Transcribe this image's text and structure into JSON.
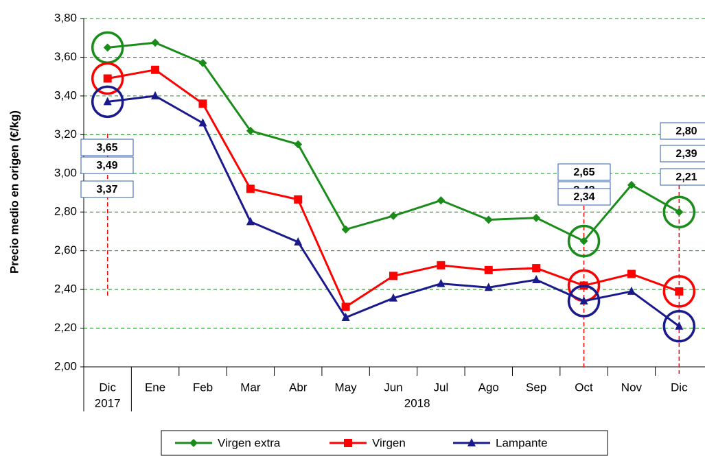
{
  "chart_data": {
    "type": "line",
    "y_label": "Precio medio en origen (€/kg)",
    "categories": [
      "Dic",
      "Ene",
      "Feb",
      "Mar",
      "Abr",
      "May",
      "Jun",
      "Jul",
      "Ago",
      "Sep",
      "Oct",
      "Nov",
      "Dic"
    ],
    "groups": [
      "2017",
      "2018"
    ],
    "ylim": [
      2.0,
      3.8
    ],
    "yticks": [
      {
        "value": 2.0,
        "label": "2,00"
      },
      {
        "value": 2.2,
        "label": "2,20"
      },
      {
        "value": 2.4,
        "label": "2,40"
      },
      {
        "value": 2.6,
        "label": "2,60"
      },
      {
        "value": 2.8,
        "label": "2,80"
      },
      {
        "value": 3.0,
        "label": "3,00"
      },
      {
        "value": 3.2,
        "label": "3,20"
      },
      {
        "value": 3.4,
        "label": "3,40"
      },
      {
        "value": 3.6,
        "label": "3,60"
      },
      {
        "value": 3.8,
        "label": "3,80"
      }
    ],
    "grid": true,
    "series": [
      {
        "name": "Virgen extra",
        "color": "#1a8c1a",
        "marker": "diamond",
        "values": [
          3.65,
          3.675,
          3.57,
          3.22,
          3.15,
          2.71,
          2.78,
          2.86,
          2.76,
          2.77,
          2.65,
          2.94,
          2.8
        ],
        "value_labels": [
          "3,65",
          null,
          null,
          null,
          null,
          null,
          null,
          null,
          null,
          null,
          "2,65",
          null,
          "2,80"
        ]
      },
      {
        "name": "Virgen",
        "color": "#ff0000",
        "marker": "square",
        "values": [
          3.49,
          3.535,
          3.36,
          2.92,
          2.865,
          2.31,
          2.47,
          2.525,
          2.5,
          2.51,
          2.42,
          2.48,
          2.39
        ],
        "value_labels": [
          "3,49",
          null,
          null,
          null,
          null,
          null,
          null,
          null,
          null,
          null,
          "2,42",
          null,
          "2,39"
        ]
      },
      {
        "name": "Lampante",
        "color": "#1a1a8c",
        "marker": "triangle",
        "values": [
          3.37,
          3.4,
          3.26,
          2.75,
          2.645,
          2.255,
          2.355,
          2.43,
          2.41,
          2.45,
          2.34,
          2.39,
          2.21
        ],
        "value_labels": [
          "3,37",
          null,
          null,
          null,
          null,
          null,
          null,
          null,
          null,
          null,
          "2,34",
          null,
          "2,21"
        ]
      }
    ]
  }
}
